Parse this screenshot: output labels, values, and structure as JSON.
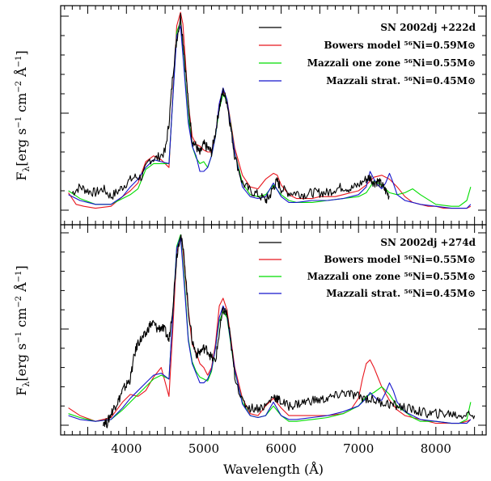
{
  "chart_data": [
    {
      "type": "line",
      "panel": "top",
      "xlabel": "Wavelength (Å)",
      "ylabel": "F_λ [erg s⁻¹ cm⁻² Å⁻¹]",
      "xlim": [
        3150,
        8650
      ],
      "y_tick_labels": "none",
      "legend": "top-right",
      "series": [
        {
          "name": "SN 2002dj +222d",
          "color": "#000000",
          "x": [
            3300,
            3400,
            3500,
            3600,
            3700,
            3800,
            3900,
            4000,
            4100,
            4200,
            4300,
            4400,
            4500,
            4550,
            4600,
            4650,
            4700,
            4750,
            4800,
            4850,
            4900,
            4950,
            5000,
            5050,
            5100,
            5150,
            5200,
            5250,
            5300,
            5350,
            5400,
            5500,
            5600,
            5700,
            5800,
            5850,
            5900,
            5950,
            6000,
            6100,
            6200,
            6300,
            6400,
            6500,
            6600,
            6700,
            6800,
            6900,
            7000,
            7100,
            7150,
            7200,
            7250,
            7300,
            7350,
            7400
          ],
          "y": [
            0.09,
            0.12,
            0.1,
            0.09,
            0.11,
            0.07,
            0.1,
            0.14,
            0.17,
            0.17,
            0.26,
            0.27,
            0.3,
            0.45,
            0.7,
            0.88,
            1.0,
            0.8,
            0.55,
            0.36,
            0.33,
            0.29,
            0.34,
            0.32,
            0.3,
            0.4,
            0.53,
            0.61,
            0.56,
            0.42,
            0.28,
            0.14,
            0.1,
            0.08,
            0.05,
            0.07,
            0.12,
            0.15,
            0.11,
            0.09,
            0.09,
            0.08,
            0.09,
            0.09,
            0.09,
            0.11,
            0.12,
            0.11,
            0.13,
            0.16,
            0.17,
            0.14,
            0.15,
            0.13,
            0.1,
            0.07
          ]
        },
        {
          "name": "Bowers model ⁵⁶Ni=0.59M⊙",
          "color": "#e8161e",
          "x": [
            3250,
            3350,
            3450,
            3600,
            3800,
            3950,
            4050,
            4150,
            4250,
            4350,
            4450,
            4550,
            4600,
            4650,
            4700,
            4730,
            4800,
            4850,
            4900,
            4950,
            5000,
            5050,
            5100,
            5150,
            5200,
            5250,
            5300,
            5350,
            5400,
            5500,
            5600,
            5700,
            5800,
            5900,
            5950,
            6000,
            6100,
            6200,
            6300,
            6400,
            6500,
            6600,
            6700,
            6800,
            6900,
            7000,
            7100,
            7200,
            7300,
            7400,
            7500,
            7600,
            7700,
            7800,
            7900,
            8000,
            8100,
            8200,
            8300,
            8400,
            8450
          ],
          "y": [
            0.09,
            0.03,
            0.02,
            0.01,
            0.02,
            0.07,
            0.1,
            0.14,
            0.25,
            0.28,
            0.26,
            0.22,
            0.6,
            0.95,
            1.02,
            0.96,
            0.55,
            0.38,
            0.34,
            0.33,
            0.31,
            0.3,
            0.3,
            0.38,
            0.55,
            0.62,
            0.57,
            0.45,
            0.32,
            0.18,
            0.12,
            0.11,
            0.16,
            0.19,
            0.18,
            0.13,
            0.08,
            0.06,
            0.06,
            0.06,
            0.07,
            0.07,
            0.07,
            0.08,
            0.09,
            0.1,
            0.13,
            0.17,
            0.18,
            0.16,
            0.12,
            0.07,
            0.04,
            0.03,
            0.02,
            0.02,
            0.01,
            0.01,
            0.01,
            0.01,
            0.02
          ]
        },
        {
          "name": "Mazzali one zone ⁵⁶Ni=0.55M⊙",
          "color": "#00dd00",
          "x": [
            3250,
            3400,
            3600,
            3800,
            3950,
            4050,
            4150,
            4250,
            4350,
            4450,
            4550,
            4600,
            4650,
            4700,
            4750,
            4800,
            4850,
            4900,
            4950,
            5000,
            5050,
            5100,
            5150,
            5200,
            5250,
            5300,
            5350,
            5400,
            5500,
            5600,
            5700,
            5800,
            5900,
            6000,
            6100,
            6200,
            6400,
            6600,
            6800,
            7000,
            7100,
            7200,
            7300,
            7400,
            7500,
            7600,
            7700,
            7800,
            8000,
            8200,
            8300,
            8400,
            8450
          ],
          "y": [
            0.1,
            0.06,
            0.03,
            0.03,
            0.06,
            0.08,
            0.11,
            0.21,
            0.24,
            0.24,
            0.24,
            0.58,
            0.92,
            0.97,
            0.72,
            0.48,
            0.33,
            0.27,
            0.24,
            0.25,
            0.22,
            0.28,
            0.38,
            0.52,
            0.6,
            0.56,
            0.44,
            0.3,
            0.14,
            0.08,
            0.07,
            0.08,
            0.13,
            0.08,
            0.05,
            0.04,
            0.04,
            0.05,
            0.06,
            0.07,
            0.09,
            0.15,
            0.13,
            0.09,
            0.08,
            0.09,
            0.11,
            0.08,
            0.03,
            0.02,
            0.02,
            0.05,
            0.12
          ]
        },
        {
          "name": "Mazzali strat. ⁵⁶Ni=0.45M⊙",
          "color": "#1515cc",
          "x": [
            3250,
            3400,
            3600,
            3800,
            3950,
            4050,
            4150,
            4250,
            4350,
            4450,
            4550,
            4600,
            4650,
            4700,
            4750,
            4800,
            4850,
            4900,
            4950,
            5000,
            5050,
            5100,
            5150,
            5200,
            5250,
            5300,
            5350,
            5400,
            5500,
            5600,
            5700,
            5800,
            5900,
            6000,
            6100,
            6200,
            6400,
            6600,
            6800,
            7000,
            7100,
            7150,
            7200,
            7250,
            7300,
            7350,
            7400,
            7450,
            7500,
            7600,
            7700,
            7800,
            8000,
            8200,
            8300,
            8400,
            8450
          ],
          "y": [
            0.08,
            0.05,
            0.03,
            0.03,
            0.07,
            0.12,
            0.16,
            0.22,
            0.26,
            0.25,
            0.24,
            0.58,
            0.9,
            0.95,
            0.7,
            0.45,
            0.33,
            0.28,
            0.2,
            0.2,
            0.22,
            0.28,
            0.38,
            0.55,
            0.63,
            0.57,
            0.43,
            0.3,
            0.12,
            0.07,
            0.06,
            0.07,
            0.14,
            0.07,
            0.04,
            0.04,
            0.05,
            0.05,
            0.06,
            0.08,
            0.12,
            0.2,
            0.16,
            0.13,
            0.11,
            0.14,
            0.19,
            0.14,
            0.08,
            0.05,
            0.04,
            0.03,
            0.02,
            0.01,
            0.01,
            0.01,
            0.03
          ]
        }
      ]
    },
    {
      "type": "line",
      "panel": "bottom",
      "xlabel": "Wavelength (Å)",
      "ylabel": "F_λ [erg s⁻¹ cm⁻² Å⁻¹]",
      "xlim": [
        3150,
        8650
      ],
      "y_tick_labels": "none",
      "legend": "top-right",
      "series": [
        {
          "name": "SN 2002dj +274d",
          "color": "#000000",
          "x": [
            3700,
            3750,
            3800,
            3850,
            3900,
            3950,
            4000,
            4050,
            4100,
            4150,
            4200,
            4250,
            4300,
            4350,
            4400,
            4450,
            4500,
            4550,
            4600,
            4650,
            4700,
            4750,
            4800,
            4850,
            4900,
            4950,
            5000,
            5050,
            5100,
            5150,
            5200,
            5250,
            5300,
            5350,
            5400,
            5500,
            5600,
            5700,
            5800,
            5900,
            5950,
            6000,
            6100,
            6200,
            6300,
            6400,
            6500,
            6600,
            6700,
            6800,
            6900,
            7000,
            7100,
            7200,
            7300,
            7400,
            7500,
            7600,
            7700,
            7800,
            7900,
            8000,
            8100,
            8200,
            8300,
            8400,
            8500
          ],
          "y": [
            0.02,
            0.01,
            0.06,
            0.1,
            0.13,
            0.18,
            0.21,
            0.24,
            0.36,
            0.43,
            0.45,
            0.47,
            0.52,
            0.53,
            0.5,
            0.51,
            0.49,
            0.44,
            0.62,
            0.88,
            1.0,
            0.86,
            0.6,
            0.44,
            0.37,
            0.38,
            0.4,
            0.39,
            0.35,
            0.33,
            0.48,
            0.6,
            0.58,
            0.43,
            0.26,
            0.12,
            0.09,
            0.09,
            0.1,
            0.15,
            0.14,
            0.12,
            0.1,
            0.11,
            0.12,
            0.13,
            0.13,
            0.14,
            0.15,
            0.17,
            0.16,
            0.15,
            0.14,
            0.13,
            0.12,
            0.11,
            0.1,
            0.09,
            0.08,
            0.07,
            0.06,
            0.06,
            0.06,
            0.06,
            0.05,
            0.06,
            0.05
          ]
        },
        {
          "name": "Bowers model ⁵⁶Ni=0.55M⊙",
          "color": "#e8161e",
          "x": [
            3250,
            3400,
            3600,
            3800,
            3950,
            4050,
            4150,
            4250,
            4350,
            4450,
            4550,
            4600,
            4650,
            4700,
            4730,
            4800,
            4850,
            4900,
            4950,
            5000,
            5050,
            5100,
            5150,
            5200,
            5250,
            5300,
            5350,
            5400,
            5500,
            5600,
            5700,
            5800,
            5900,
            6000,
            6100,
            6200,
            6400,
            6600,
            6800,
            6900,
            7000,
            7050,
            7100,
            7150,
            7200,
            7250,
            7300,
            7400,
            7500,
            7600,
            7700,
            7800,
            7900,
            8000,
            8100,
            8200,
            8300,
            8400,
            8450
          ],
          "y": [
            0.09,
            0.05,
            0.02,
            0.04,
            0.12,
            0.16,
            0.15,
            0.18,
            0.25,
            0.3,
            0.15,
            0.5,
            0.9,
            0.97,
            0.92,
            0.6,
            0.42,
            0.38,
            0.32,
            0.3,
            0.26,
            0.3,
            0.42,
            0.62,
            0.66,
            0.6,
            0.45,
            0.3,
            0.14,
            0.06,
            0.05,
            0.1,
            0.14,
            0.09,
            0.05,
            0.05,
            0.05,
            0.05,
            0.06,
            0.08,
            0.14,
            0.24,
            0.32,
            0.34,
            0.3,
            0.25,
            0.2,
            0.13,
            0.08,
            0.05,
            0.04,
            0.03,
            0.02,
            0.01,
            0.01,
            0.01,
            0.01,
            0.02,
            0.03
          ]
        },
        {
          "name": "Mazzali one zone ⁵⁶Ni=0.55M⊙",
          "color": "#00dd00",
          "x": [
            3250,
            3400,
            3600,
            3800,
            3950,
            4050,
            4150,
            4250,
            4350,
            4450,
            4550,
            4600,
            4650,
            4700,
            4750,
            4800,
            4850,
            4900,
            4950,
            5000,
            5050,
            5100,
            5150,
            5200,
            5250,
            5300,
            5350,
            5400,
            5500,
            5600,
            5700,
            5800,
            5900,
            6000,
            6100,
            6200,
            6400,
            6600,
            6800,
            7000,
            7100,
            7200,
            7300,
            7400,
            7500,
            7600,
            7700,
            7800,
            8000,
            8200,
            8300,
            8400,
            8450
          ],
          "y": [
            0.06,
            0.04,
            0.02,
            0.03,
            0.08,
            0.12,
            0.16,
            0.2,
            0.24,
            0.26,
            0.24,
            0.58,
            0.93,
            0.99,
            0.75,
            0.45,
            0.33,
            0.28,
            0.25,
            0.24,
            0.23,
            0.28,
            0.4,
            0.54,
            0.59,
            0.56,
            0.42,
            0.28,
            0.12,
            0.05,
            0.04,
            0.05,
            0.1,
            0.05,
            0.02,
            0.02,
            0.03,
            0.04,
            0.06,
            0.1,
            0.15,
            0.17,
            0.2,
            0.16,
            0.1,
            0.07,
            0.04,
            0.02,
            0.02,
            0.01,
            0.01,
            0.03,
            0.12
          ]
        },
        {
          "name": "Mazzali strat. ⁵⁶Ni=0.45M⊙",
          "color": "#1515cc",
          "x": [
            3250,
            3400,
            3600,
            3800,
            3950,
            4050,
            4150,
            4250,
            4350,
            4450,
            4550,
            4600,
            4650,
            4700,
            4750,
            4800,
            4850,
            4900,
            4950,
            5000,
            5050,
            5100,
            5150,
            5200,
            5250,
            5300,
            5350,
            5400,
            5500,
            5600,
            5700,
            5800,
            5900,
            6000,
            6100,
            6200,
            6400,
            6600,
            6800,
            7000,
            7100,
            7150,
            7200,
            7250,
            7300,
            7350,
            7400,
            7450,
            7500,
            7600,
            7700,
            7800,
            8000,
            8200,
            8300,
            8400,
            8450
          ],
          "y": [
            0.05,
            0.03,
            0.02,
            0.03,
            0.09,
            0.14,
            0.18,
            0.22,
            0.26,
            0.27,
            0.24,
            0.58,
            0.92,
            0.98,
            0.72,
            0.44,
            0.32,
            0.27,
            0.22,
            0.22,
            0.24,
            0.29,
            0.4,
            0.56,
            0.62,
            0.57,
            0.43,
            0.29,
            0.11,
            0.05,
            0.04,
            0.05,
            0.12,
            0.05,
            0.03,
            0.03,
            0.04,
            0.05,
            0.07,
            0.1,
            0.14,
            0.17,
            0.15,
            0.13,
            0.13,
            0.17,
            0.22,
            0.18,
            0.12,
            0.07,
            0.05,
            0.03,
            0.02,
            0.01,
            0.01,
            0.01,
            0.03
          ]
        }
      ]
    }
  ],
  "figure": {
    "x_tick_labels": [
      "4000",
      "5000",
      "6000",
      "7000",
      "8000"
    ],
    "xlabel": "Wavelength (Å)"
  }
}
